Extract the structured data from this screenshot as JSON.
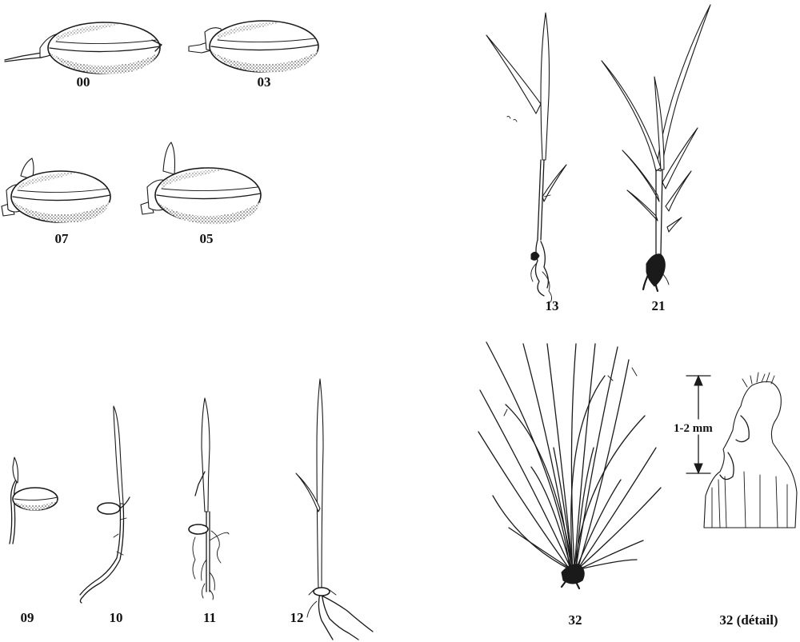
{
  "stages": {
    "s00": "00",
    "s03": "03",
    "s07": "07",
    "s05": "05",
    "s09": "09",
    "s10": "10",
    "s11": "11",
    "s12": "12",
    "s13": "13",
    "s21": "21",
    "s32": "32",
    "s32_detail": "32 (détail)"
  },
  "scale_bar": {
    "label": "1-2 mm"
  }
}
